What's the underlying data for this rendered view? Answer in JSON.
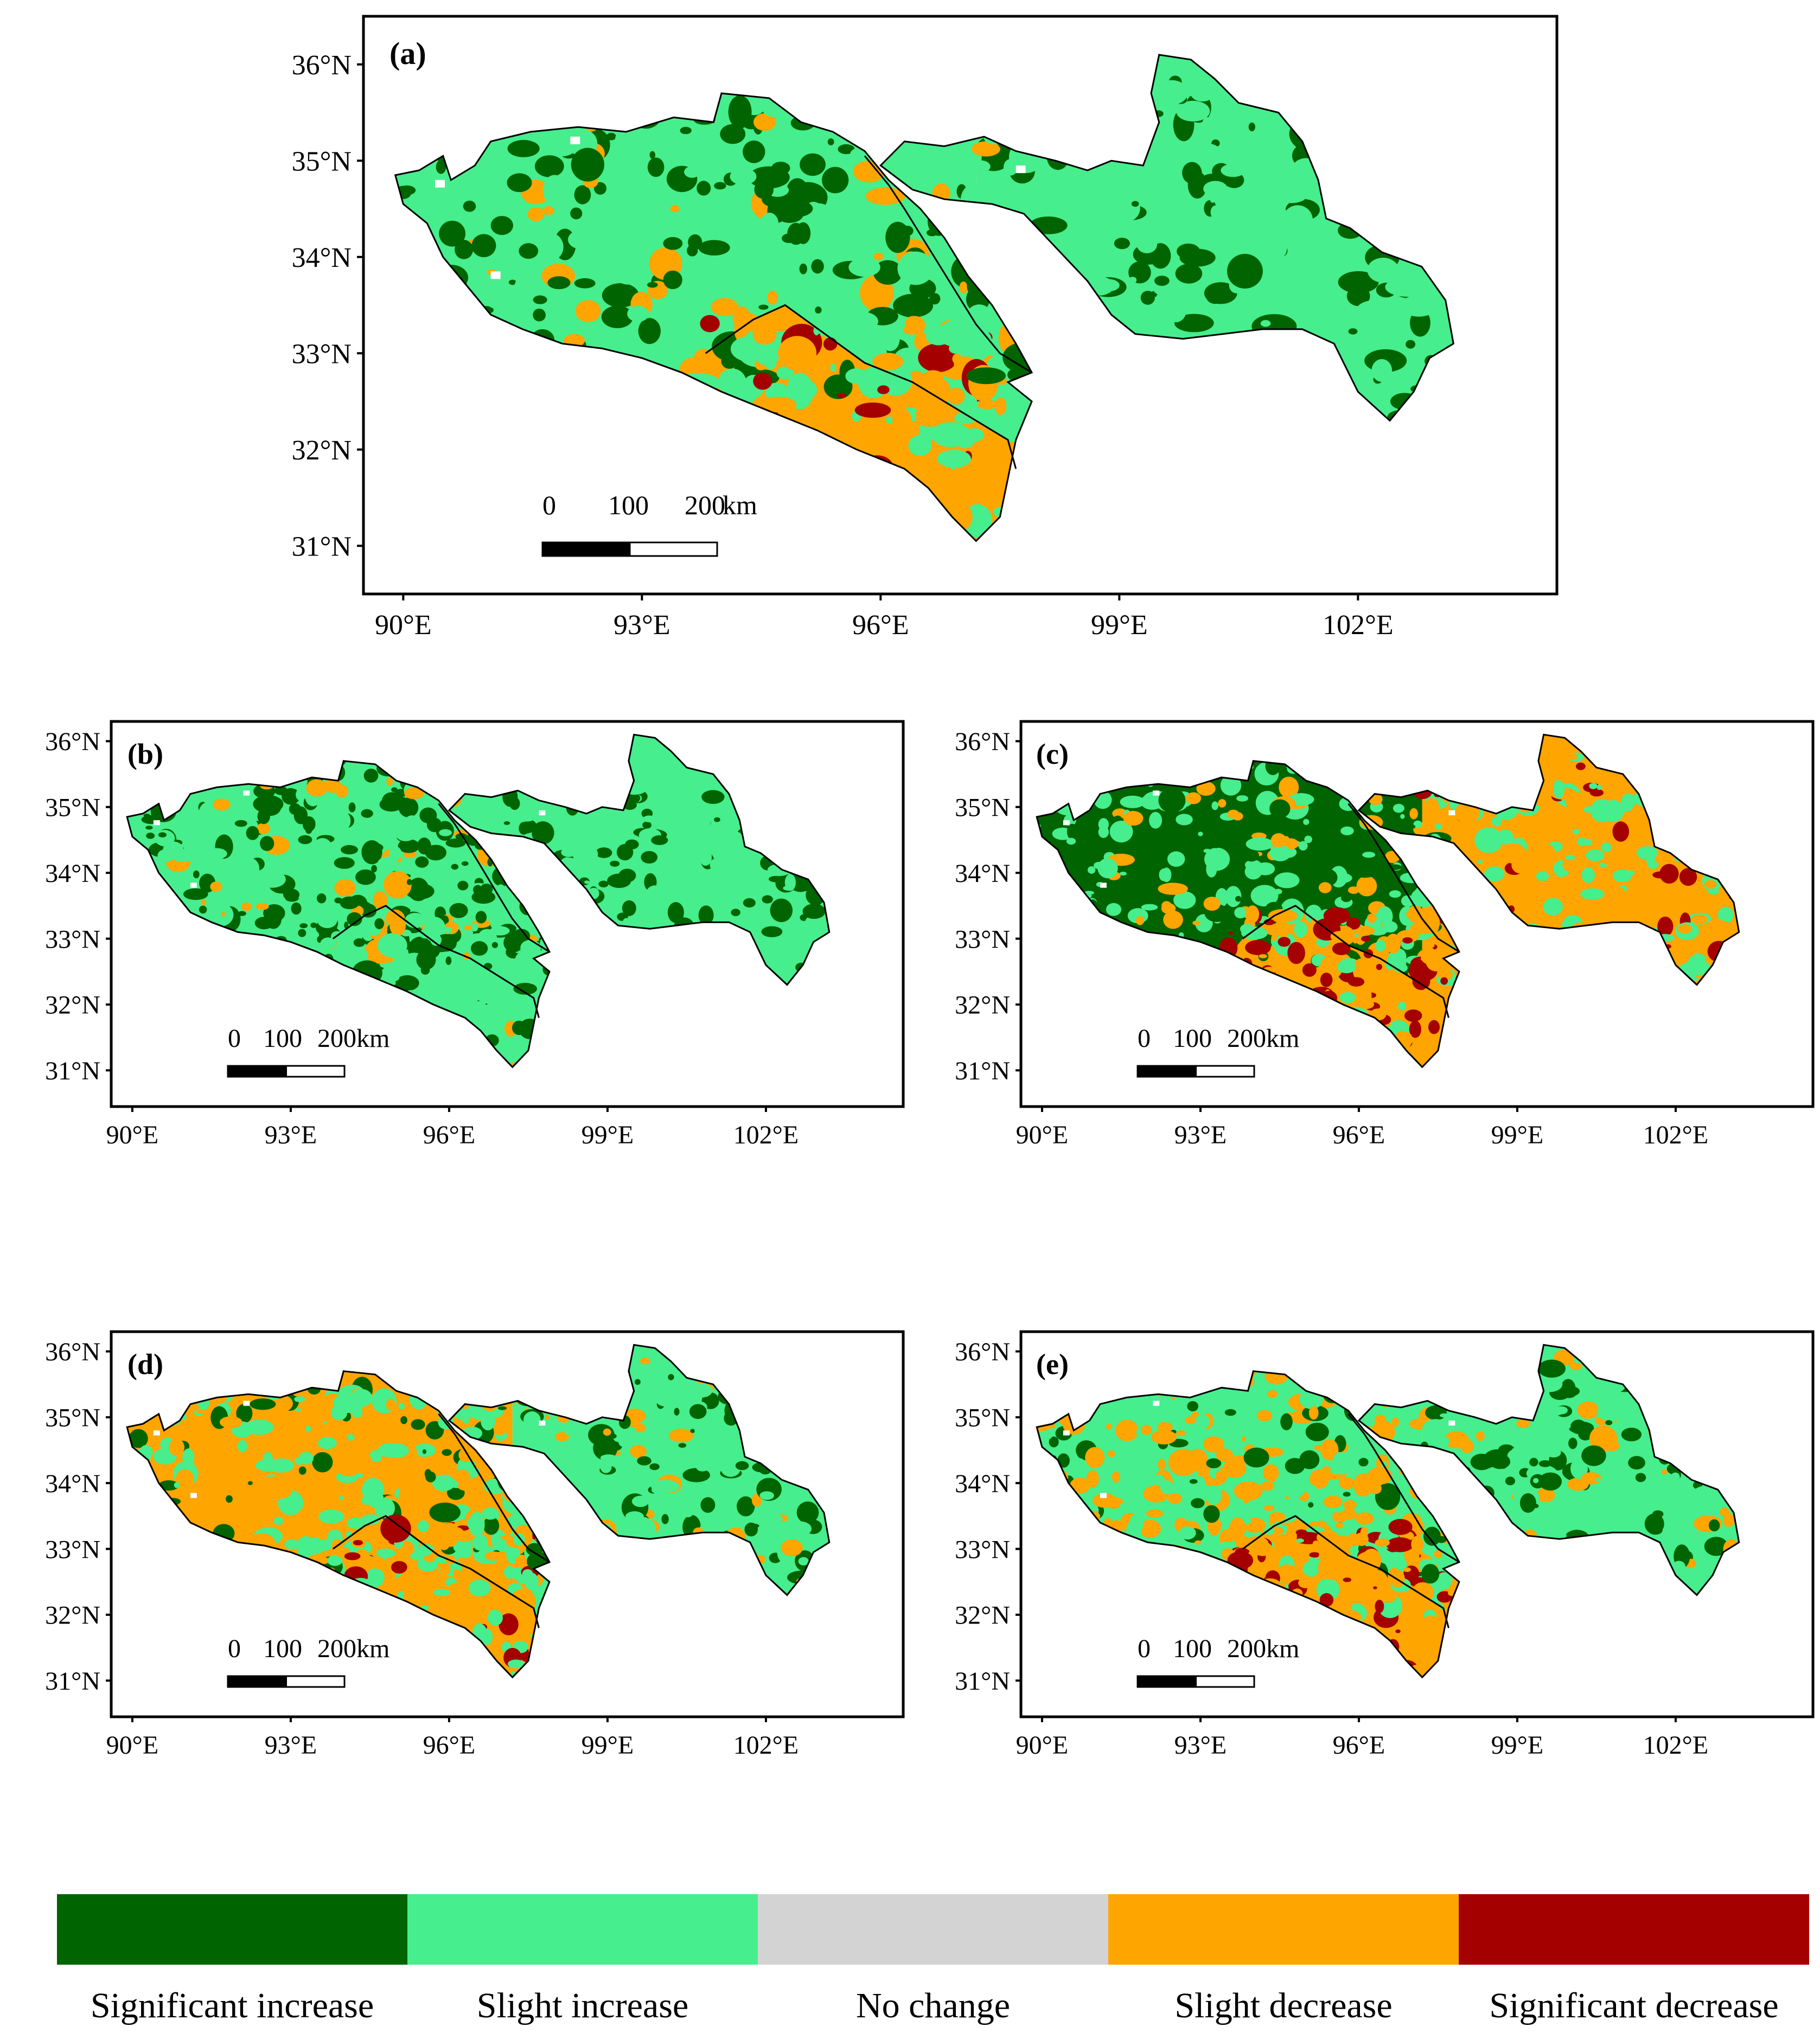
{
  "panels": [
    {
      "id": "a",
      "label": "(a)",
      "scale": [
        "0",
        "100",
        "200",
        "km"
      ]
    },
    {
      "id": "b",
      "label": "(b)",
      "scale": [
        "0",
        "100",
        "200km"
      ]
    },
    {
      "id": "c",
      "label": "(c)",
      "scale": [
        "0",
        "100",
        "200km"
      ]
    },
    {
      "id": "d",
      "label": "(d)",
      "scale": [
        "0",
        "100",
        "200km"
      ]
    },
    {
      "id": "e",
      "label": "(e)",
      "scale": [
        "0",
        "100",
        "200km"
      ]
    }
  ],
  "axes": {
    "lat_ticks": [
      "36°N",
      "35°N",
      "34°N",
      "33°N",
      "32°N",
      "31°N"
    ],
    "lon_ticks": [
      "90°E",
      "93°E",
      "96°E",
      "99°E",
      "102°E"
    ]
  },
  "legend": [
    {
      "label": "Significant increase",
      "color": "#006400"
    },
    {
      "label": "Slight increase",
      "color": "#46EE8D"
    },
    {
      "label": "No change",
      "color": "#D3D3D3"
    },
    {
      "label": "Slight decrease",
      "color": "#FFA500"
    },
    {
      "label": "Significant decrease",
      "color": "#A50000"
    }
  ],
  "colors": {
    "significant_increase": "#006400",
    "slight_increase": "#46EE8D",
    "no_change": "#D3D3D3",
    "slight_decrease": "#FFA500",
    "significant_decrease": "#A50000"
  },
  "map_patterns": {
    "a": {
      "west": [
        "significant_increase",
        "slight_increase",
        "slight_decrease"
      ],
      "south": [
        "slight_decrease",
        "slight_increase",
        "significant_decrease"
      ],
      "east": [
        "slight_increase",
        "significant_increase"
      ]
    },
    "b": {
      "west": [
        "significant_increase",
        "slight_increase",
        "slight_decrease"
      ],
      "south": [
        "slight_increase",
        "significant_increase",
        "slight_decrease"
      ],
      "east": [
        "slight_increase",
        "significant_increase"
      ]
    },
    "c": {
      "west": [
        "slight_increase",
        "significant_increase",
        "slight_decrease"
      ],
      "south": [
        "slight_decrease",
        "significant_decrease",
        "slight_increase"
      ],
      "east": [
        "slight_decrease",
        "slight_increase",
        "significant_decrease"
      ]
    },
    "d": {
      "west": [
        "slight_increase",
        "slight_decrease",
        "significant_increase"
      ],
      "south": [
        "slight_decrease",
        "slight_increase",
        "significant_decrease"
      ],
      "east": [
        "slight_increase",
        "significant_increase",
        "slight_decrease"
      ]
    },
    "e": {
      "west": [
        "slight_decrease",
        "slight_increase",
        "significant_increase"
      ],
      "south": [
        "slight_decrease",
        "significant_decrease",
        "slight_increase"
      ],
      "east": [
        "slight_increase",
        "significant_increase",
        "slight_decrease"
      ]
    }
  }
}
